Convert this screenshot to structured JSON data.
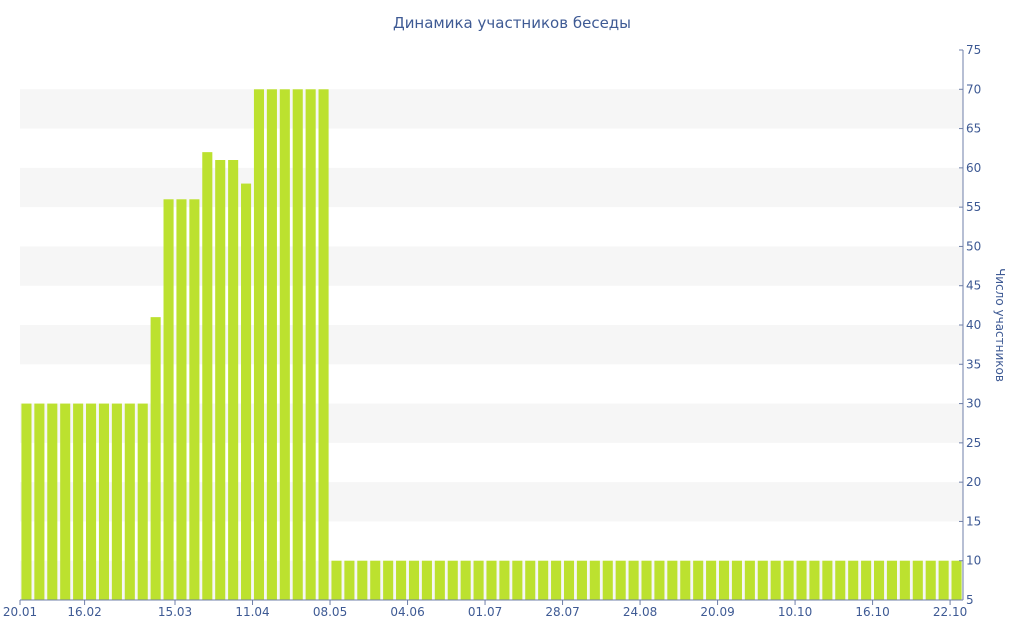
{
  "chart_data": {
    "type": "bar",
    "title": "Динамика участников беседы",
    "ylabel": "Число участников",
    "ylim": [
      5,
      75
    ],
    "y_ticks": [
      5,
      10,
      15,
      20,
      25,
      30,
      35,
      40,
      45,
      50,
      55,
      60,
      65,
      70,
      75
    ],
    "y_axis_side": "right",
    "x_tick_labels": [
      "20.01",
      "16.02",
      "15.03",
      "11.04",
      "08.05",
      "04.06",
      "01.07",
      "28.07",
      "24.08",
      "20.09",
      "10.10",
      "16.10",
      "22.10"
    ],
    "x_tick_positions": [
      0,
      5,
      12,
      18,
      24,
      30,
      36,
      42,
      48,
      54,
      60,
      66,
      72
    ],
    "values": [
      30,
      30,
      30,
      30,
      30,
      30,
      30,
      30,
      30,
      30,
      41,
      56,
      56,
      56,
      62,
      61,
      61,
      58,
      70,
      70,
      70,
      70,
      70,
      70,
      10,
      10,
      10,
      10,
      10,
      10,
      10,
      10,
      10,
      10,
      10,
      10,
      10,
      10,
      10,
      10,
      10,
      10,
      10,
      10,
      10,
      10,
      10,
      10,
      10,
      10,
      10,
      10,
      10,
      10,
      10,
      10,
      10,
      10,
      10,
      10,
      10,
      10,
      10,
      10,
      10,
      10,
      10,
      10,
      10,
      10,
      10,
      10,
      10
    ],
    "grid": "alternating horizontal bands",
    "legend": "none",
    "bar_color": "#bce12f",
    "band_color": "#f6f6f6",
    "text_color": "#3e5a94",
    "axis_color": "#6f7fa8"
  }
}
